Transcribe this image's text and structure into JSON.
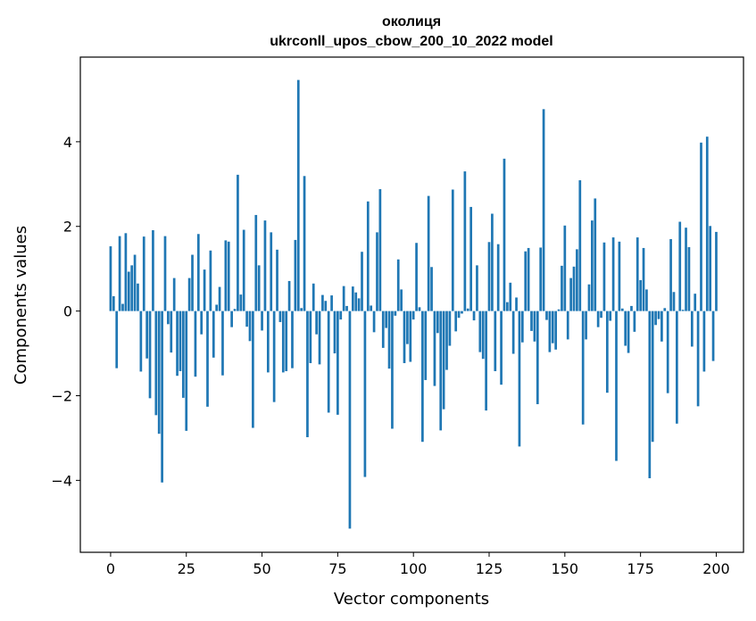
{
  "chart_data": {
    "type": "bar",
    "title": "околиця",
    "subtitle": "ukrconll_upos_cbow_200_10_2022 model",
    "xlabel": "Vector components",
    "ylabel": "Components values",
    "xlim": [
      -10,
      209
    ],
    "ylim": [
      -5.7,
      6.0
    ],
    "xticks": [
      0,
      25,
      50,
      75,
      100,
      125,
      150,
      175,
      200
    ],
    "yticks": [
      -4,
      -2,
      0,
      2,
      4
    ],
    "ytick_labels": [
      "−4",
      "−2",
      "0",
      "2",
      "4"
    ],
    "grid": false,
    "bar_color": "#1f77b4",
    "values": [
      1.53,
      0.35,
      -1.35,
      1.77,
      0.17,
      1.84,
      0.93,
      1.08,
      1.33,
      0.65,
      -1.43,
      1.76,
      -1.12,
      -2.06,
      1.91,
      -2.46,
      -2.9,
      -4.05,
      1.77,
      -0.31,
      -0.98,
      0.78,
      -1.53,
      -1.42,
      -2.05,
      -2.83,
      0.78,
      1.33,
      -1.55,
      1.82,
      -0.55,
      0.98,
      -2.26,
      1.43,
      -1.1,
      0.15,
      0.57,
      -1.52,
      1.67,
      1.64,
      -0.38,
      0.05,
      3.22,
      0.39,
      1.92,
      -0.37,
      -0.71,
      -2.76,
      2.27,
      1.08,
      -0.46,
      2.14,
      -1.45,
      1.86,
      -2.15,
      1.45,
      -0.26,
      -1.45,
      -1.42,
      0.71,
      -1.35,
      1.68,
      5.46,
      0.07,
      3.19,
      -2.98,
      -1.23,
      0.65,
      -0.55,
      -1.26,
      0.38,
      0.24,
      -2.4,
      0.37,
      -1.0,
      -2.45,
      -0.2,
      0.59,
      0.12,
      -5.14,
      0.58,
      0.44,
      0.3,
      1.4,
      -3.92,
      2.59,
      0.13,
      -0.5,
      1.86,
      2.88,
      -0.87,
      -0.4,
      -1.36,
      -2.78,
      -0.11,
      1.22,
      0.51,
      -1.23,
      -0.78,
      -1.2,
      -0.2,
      1.61,
      0.09,
      -3.09,
      -1.63,
      2.72,
      1.04,
      -1.77,
      -0.52,
      -2.82,
      -2.32,
      -1.39,
      -0.82,
      2.87,
      -0.48,
      -0.16,
      -0.06,
      3.3,
      0.06,
      2.46,
      -0.22,
      1.08,
      -0.97,
      -1.13,
      -2.35,
      1.63,
      2.3,
      -1.42,
      1.58,
      -1.74,
      3.6,
      0.21,
      0.67,
      -1.01,
      0.32,
      -3.2,
      -0.74,
      1.41,
      1.49,
      -0.47,
      -0.72,
      -2.2,
      1.5,
      4.77,
      -0.21,
      -0.97,
      -0.76,
      -0.91,
      0.04,
      1.07,
      2.02,
      -0.67,
      0.78,
      1.05,
      1.46,
      3.09,
      -2.68,
      -0.67,
      0.63,
      2.14,
      2.66,
      -0.38,
      -0.16,
      1.62,
      -1.93,
      -0.23,
      1.74,
      -3.54,
      1.64,
      0.06,
      -0.82,
      -0.99,
      0.12,
      -0.49,
      1.74,
      0.73,
      1.49,
      0.51,
      -3.95,
      -3.09,
      -0.33,
      -0.19,
      -0.72,
      0.07,
      -1.94,
      1.7,
      0.45,
      -2.66,
      2.11,
      0.03,
      1.97,
      1.51,
      -0.84,
      0.41,
      -2.25,
      3.98,
      -1.43,
      4.12,
      2.01,
      -1.18,
      1.87
    ]
  }
}
